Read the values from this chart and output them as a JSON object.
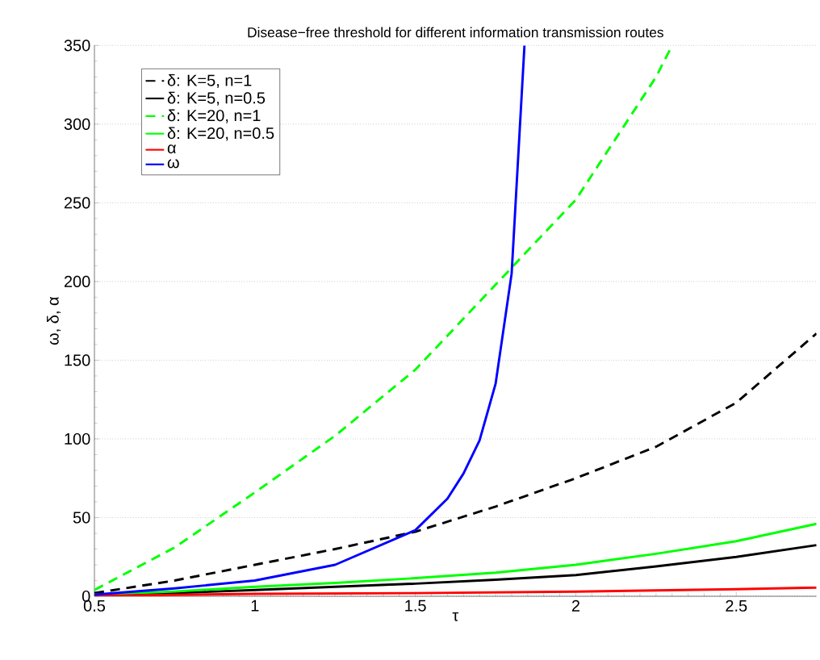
{
  "chart_data": {
    "type": "line",
    "title": "Disease−free threshold for different information transmission routes",
    "xlabel": "τ",
    "ylabel": "ω, δ, α",
    "xlim": [
      0.5,
      2.75
    ],
    "ylim": [
      0,
      350
    ],
    "xticks": [
      0.5,
      1,
      1.5,
      2,
      2.5
    ],
    "yticks": [
      0,
      50,
      100,
      150,
      200,
      250,
      300,
      350
    ],
    "grid": "y",
    "legend": "top left",
    "marker": "none",
    "series": [
      {
        "name": "δ: K=5, n=1",
        "color": "#000000",
        "line_style": "dashed",
        "x": [
          0.5,
          0.75,
          1,
          1.25,
          1.5,
          1.75,
          2,
          2.25,
          2.5,
          2.75
        ],
        "values": [
          2,
          10,
          20,
          30,
          41,
          57,
          75,
          95,
          123,
          167
        ]
      },
      {
        "name": "δ: K=5, n=0.5",
        "color": "#000000",
        "line_style": "solid",
        "x": [
          0.5,
          0.75,
          1,
          1.25,
          1.5,
          1.75,
          2,
          2.25,
          2.5,
          2.75
        ],
        "values": [
          0.5,
          2,
          4,
          6,
          8,
          10.5,
          13.5,
          19,
          25,
          32.5
        ]
      },
      {
        "name": "δ: K=20, n=1",
        "color": "#00ff00",
        "line_style": "dashed",
        "x": [
          0.5,
          0.75,
          1,
          1.25,
          1.5,
          1.75,
          2,
          2.25,
          2.3
        ],
        "values": [
          4,
          31,
          66,
          102,
          144,
          198,
          252,
          330,
          350
        ]
      },
      {
        "name": "δ: K=20, n=0.5",
        "color": "#00ff00",
        "line_style": "solid",
        "x": [
          0.5,
          0.75,
          1,
          1.25,
          1.5,
          1.75,
          2,
          2.25,
          2.5,
          2.75
        ],
        "values": [
          1,
          3,
          6,
          8.5,
          11.5,
          15,
          20,
          27,
          35,
          46
        ]
      },
      {
        "name": "α",
        "color": "#ff0000",
        "line_style": "solid",
        "x": [
          0.5,
          1,
          1.5,
          2,
          2.5,
          2.75
        ],
        "values": [
          0.3,
          1.5,
          2,
          3,
          4.5,
          5.5
        ]
      },
      {
        "name": "ω",
        "color": "#0000ff",
        "line_style": "solid",
        "x": [
          0.5,
          0.75,
          1,
          1.25,
          1.5,
          1.55,
          1.6,
          1.65,
          1.7,
          1.75,
          1.8,
          1.84
        ],
        "values": [
          1,
          5,
          10,
          20,
          42,
          52,
          62,
          78,
          99,
          135,
          205,
          350
        ]
      }
    ]
  }
}
